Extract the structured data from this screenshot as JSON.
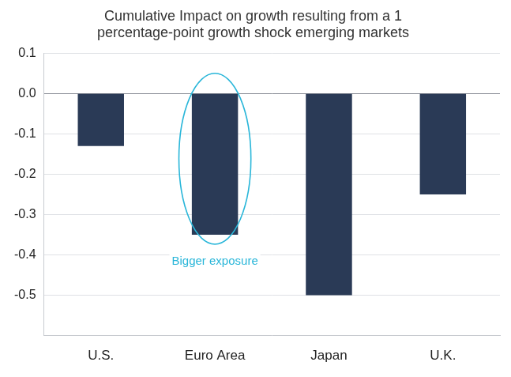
{
  "chart_data": {
    "type": "bar",
    "title": "Cumulative Impact on growth resulting from a 1 percentage-point growth shock emerging markets",
    "categories": [
      "U.S.",
      "Euro Area",
      "Japan",
      "U.K."
    ],
    "values": [
      -0.13,
      -0.35,
      -0.5,
      -0.25
    ],
    "color": "#2a3a56",
    "ylim": [
      -0.6,
      0.1
    ],
    "yticks": [
      0.1,
      {
        "value": 0,
        "label": "0.0"
      },
      -0.1,
      -0.2,
      -0.3,
      -0.4,
      -0.5
    ],
    "grid": true,
    "annotations": [
      {
        "text": "Bigger exposure",
        "category": "Euro Area"
      }
    ]
  }
}
